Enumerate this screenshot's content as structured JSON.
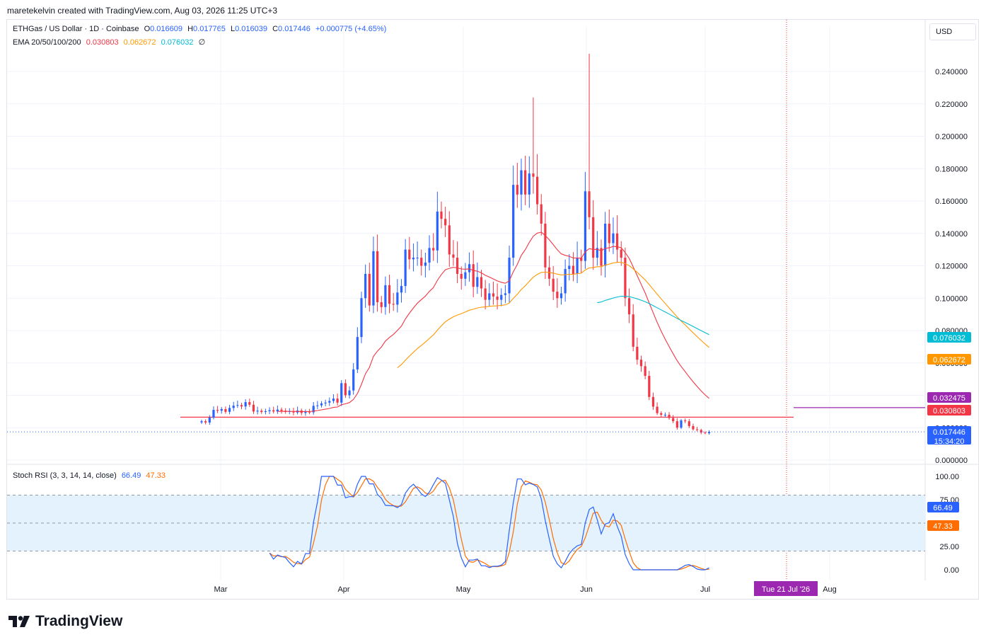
{
  "header": {
    "credit": "maretekelvin created with TradingView.com, Aug 03, 2026 11:25 UTC+3"
  },
  "legend": {
    "symbol": "ETHGas / US Dollar · 1D · Coinbase",
    "open_label": "O",
    "open": "0.016609",
    "high_label": "H",
    "high": "0.017765",
    "low_label": "L",
    "low": "0.016039",
    "close_label": "C",
    "close": "0.017446",
    "change": "+0.000775 (+4.65%)",
    "ema_label": "EMA 20/50/100/200",
    "ema20": "0.030803",
    "ema50": "0.062672",
    "ema100": "0.076032",
    "ema200": "∅",
    "stoch_label": "Stoch RSI (3, 3, 14, 14, close)",
    "stoch_k": "66.49",
    "stoch_d": "47.33"
  },
  "currency": "USD",
  "brand": "TradingView",
  "colors": {
    "up": "#2962ff",
    "down": "#f23645",
    "ema20": "#f23645",
    "ema50": "#ff9800",
    "ema100": "#00bcd4",
    "stoch_k": "#2962ff",
    "stoch_d": "#ff6d00",
    "marker": "#9c27b0",
    "band": "#e3f2fd"
  },
  "chart_data": [
    {
      "type": "candlestick",
      "title": "ETHGas / US Dollar · 1D · Coinbase",
      "y_ticks": [
        "0.240000",
        "0.220000",
        "0.200000",
        "0.180000",
        "0.160000",
        "0.140000",
        "0.120000",
        "0.100000",
        "0.080000",
        "0.060000",
        "0.040000",
        "0.020000",
        "0.000000"
      ],
      "x_ticks": [
        "Mar",
        "Apr",
        "May",
        "Jun",
        "Jul",
        "Aug"
      ],
      "ylim": [
        0,
        0.26
      ],
      "price_labels": [
        {
          "name": "EMA 100",
          "value": "0.076032",
          "color": "#00bcd4"
        },
        {
          "name": "EMA 50",
          "value": "0.062672",
          "color": "#ff9800"
        },
        {
          "name": "horizontal line",
          "value": "0.032475",
          "color": "#9c27b0"
        },
        {
          "name": "EMA 20",
          "value": "0.030803",
          "color": "#f23645"
        },
        {
          "name": "last price",
          "value": "0.017446",
          "countdown": "15:34:20",
          "color": "#2962ff"
        }
      ],
      "cursor_date": "Tue 21 Jul '26",
      "support_level": 0.0265,
      "resistance_level": 0.0324,
      "candles_close_approx": [
        0.024,
        0.0232,
        0.0262,
        0.031,
        0.0305,
        0.0315,
        0.0298,
        0.0322,
        0.0336,
        0.034,
        0.0331,
        0.0358,
        0.0342,
        0.03,
        0.0305,
        0.0297,
        0.0302,
        0.0308,
        0.03,
        0.0312,
        0.0305,
        0.0298,
        0.0302,
        0.0294,
        0.0306,
        0.0291,
        0.0298,
        0.0295,
        0.0335,
        0.0338,
        0.035,
        0.0355,
        0.0365,
        0.038,
        0.0355,
        0.0475,
        0.04,
        0.043,
        0.056,
        0.076,
        0.1,
        0.115,
        0.0955,
        0.129,
        0.0975,
        0.0945,
        0.108,
        0.0965,
        0.096,
        0.1035,
        0.1075,
        0.13,
        0.124,
        0.125,
        0.125,
        0.12,
        0.122,
        0.131,
        0.1295,
        0.1535,
        0.149,
        0.145,
        0.127,
        0.125,
        0.115,
        0.112,
        0.116,
        0.121,
        0.107,
        0.113,
        0.106,
        0.099,
        0.103,
        0.101,
        0.099,
        0.102,
        0.103,
        0.125,
        0.17,
        0.164,
        0.179,
        0.164,
        0.177,
        0.175,
        0.158,
        0.146,
        0.119,
        0.112,
        0.104,
        0.1,
        0.103,
        0.118,
        0.12,
        0.115,
        0.125,
        0.123,
        0.166,
        0.15,
        0.125,
        0.131,
        0.12,
        0.146,
        0.134,
        0.14,
        0.13,
        0.125,
        0.1,
        0.09,
        0.07,
        0.062,
        0.058,
        0.052,
        0.039,
        0.033,
        0.029,
        0.028,
        0.028,
        0.026,
        0.024,
        0.02,
        0.0245,
        0.024,
        0.021,
        0.019,
        0.0186,
        0.017,
        0.0166,
        0.0174
      ]
    },
    {
      "type": "line",
      "title": "Stoch RSI (3, 3, 14, 14, close)",
      "y_ticks": [
        "100.00",
        "75.00",
        "25.00",
        "0.00"
      ],
      "ylim": [
        0,
        100
      ],
      "band": [
        20,
        80
      ],
      "series": [
        {
          "name": "K",
          "last": "66.49",
          "color": "#2962ff"
        },
        {
          "name": "D",
          "last": "47.33",
          "color": "#ff6d00"
        }
      ]
    }
  ]
}
